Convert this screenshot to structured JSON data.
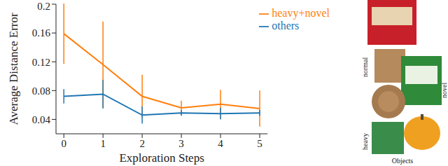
{
  "chart_data": {
    "type": "line",
    "x": [
      0,
      1,
      2,
      3,
      4,
      5
    ],
    "xlabel": "Exploration Steps",
    "ylabel": "Average Distance Error",
    "xlim": [
      -0.2,
      5.2
    ],
    "xticks": [
      0,
      1,
      2,
      3,
      4,
      5
    ],
    "ylim": [
      0.02,
      0.2
    ],
    "yticks": [
      0.04,
      0.08,
      0.12,
      0.16,
      0.2
    ],
    "grid": false,
    "legend": "upper right",
    "series": [
      {
        "name": "heavy+novel",
        "color": "#ff7f0e",
        "values": [
          0.159,
          0.116,
          0.072,
          0.056,
          0.061,
          0.055
        ],
        "errors": [
          0.042,
          0.06,
          0.03,
          0.01,
          0.02,
          0.025
        ]
      },
      {
        "name": "others",
        "color": "#1f77b4",
        "values": [
          0.072,
          0.075,
          0.046,
          0.049,
          0.048,
          0.049
        ],
        "errors": [
          0.01,
          0.02,
          0.012,
          0.004,
          0.008,
          0.004
        ]
      }
    ]
  },
  "image_panel": {
    "title": "Objects",
    "labels": [
      "normal",
      "heavy",
      "novel"
    ]
  }
}
